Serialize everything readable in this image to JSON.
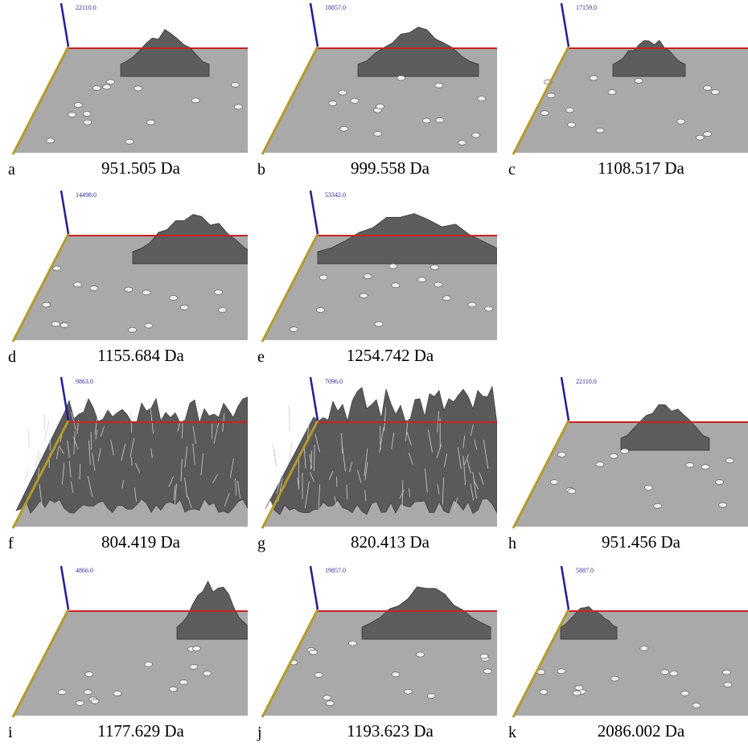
{
  "panels": [
    {
      "letter": "a",
      "mass": "951.505 Da",
      "max": "22110.0"
    },
    {
      "letter": "b",
      "mass": "999.558 Da",
      "max": "18857.0"
    },
    {
      "letter": "c",
      "mass": "1108.517 Da",
      "max": "17159.0"
    },
    {
      "letter": "d",
      "mass": "1155.684 Da",
      "max": "14498.0"
    },
    {
      "letter": "e",
      "mass": "1254.742 Da",
      "max": "53342.0"
    },
    {
      "letter": "f",
      "mass": "804.419 Da",
      "max": "9863.0"
    },
    {
      "letter": "g",
      "mass": "820.413 Da",
      "max": "7096.0"
    },
    {
      "letter": "h",
      "mass": "951.456 Da",
      "max": "22110.0"
    },
    {
      "letter": "i",
      "mass": "1177.629 Da",
      "max": "4866.0"
    },
    {
      "letter": "j",
      "mass": "1193.623 Da",
      "max": "19857.0"
    },
    {
      "letter": "k",
      "mass": "2086.002 Da",
      "max": "5887.0"
    }
  ]
}
